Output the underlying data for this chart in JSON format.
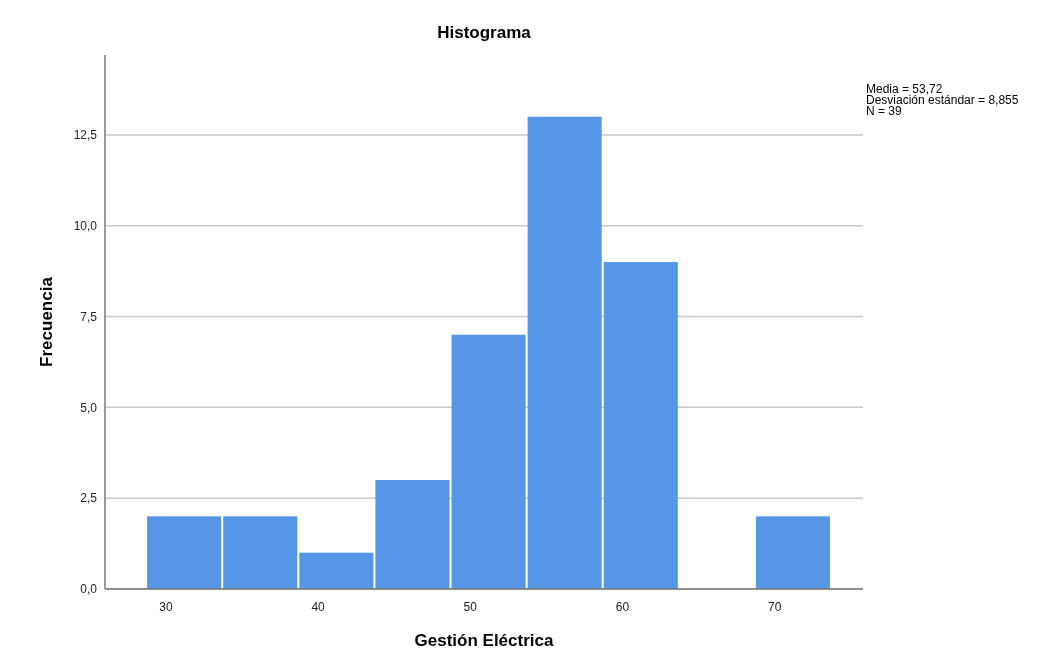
{
  "chart_data": {
    "type": "histogram",
    "title": "Histograma",
    "xlabel": "Gestión Eléctrica",
    "ylabel": "Frecuencia",
    "bins": [
      28.7,
      33.7,
      38.7,
      43.7,
      48.7,
      53.7,
      58.7,
      63.7,
      68.7,
      73.7
    ],
    "values": [
      2,
      2,
      1,
      3,
      7,
      13,
      9,
      0,
      2
    ],
    "color": "#5596e6",
    "xlim": [
      26,
      75.8
    ],
    "xticks": [
      30,
      40,
      50,
      60,
      70
    ],
    "ylim": [
      0,
      14.7
    ],
    "yticks": [
      {
        "value": 0,
        "label": "0,0"
      },
      {
        "value": 2.5,
        "label": "2,5"
      },
      {
        "value": 5,
        "label": "5,0"
      },
      {
        "value": 7.5,
        "label": "7,5"
      },
      {
        "value": 10,
        "label": "10,0"
      },
      {
        "value": 12.5,
        "label": "12,5"
      }
    ],
    "grid": "y",
    "annotations": [
      "Media = 53,72",
      "Desviación estándar = 8,855",
      "N = 39"
    ]
  }
}
